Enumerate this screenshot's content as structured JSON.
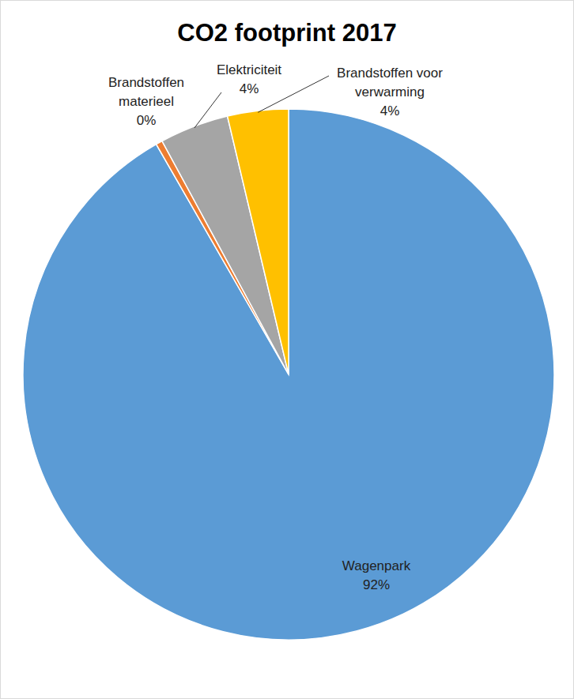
{
  "chart_data": {
    "type": "pie",
    "title": "CO2 footprint 2017",
    "categories": [
      "Wagenpark",
      "Brandstoffen materieel",
      "Elektriciteit",
      "Brandstoffen voor verwarming"
    ],
    "values": [
      91.7,
      0.4,
      4.2,
      3.7
    ],
    "value_labels": [
      "92%",
      "0%",
      "4%",
      "4%"
    ],
    "colors": [
      "#5b9bd5",
      "#ed7d31",
      "#a5a5a5",
      "#ffc000"
    ],
    "data_labels": true
  }
}
